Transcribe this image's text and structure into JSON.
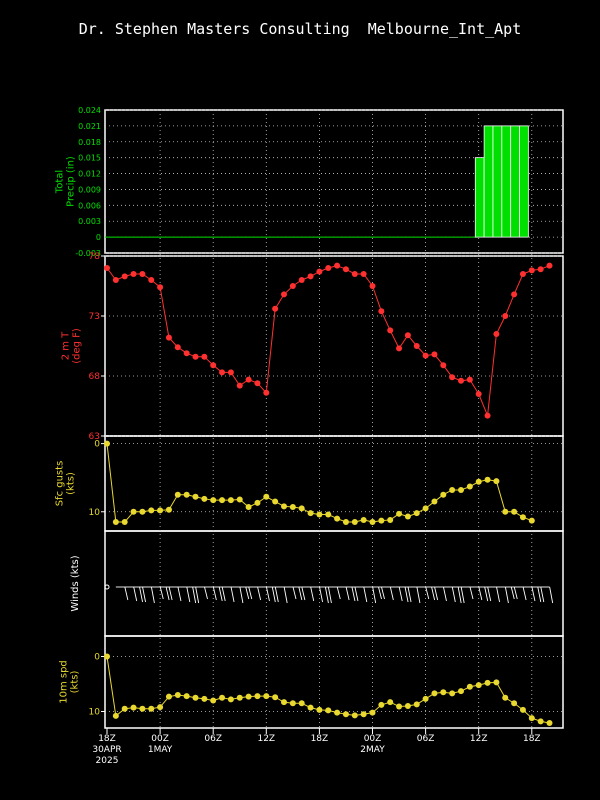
{
  "title": "Dr. Stephen Masters Consulting  Melbourne_Int_Apt",
  "colors": {
    "frame": "#ffffff",
    "grid": "#c8c8c8",
    "precip": "#00e000",
    "temp": "#ff3030",
    "gust": "#e8d830",
    "wind": "#ffffff",
    "spd": "#e8d830"
  },
  "x_axis": {
    "start": "2025-04-30T18:00Z",
    "step_hours": 1,
    "ticks": [
      {
        "hour": 0,
        "lines": [
          "18Z",
          "30APR",
          "2025"
        ]
      },
      {
        "hour": 6,
        "lines": [
          "00Z",
          "1MAY"
        ]
      },
      {
        "hour": 12,
        "lines": [
          "06Z"
        ]
      },
      {
        "hour": 18,
        "lines": [
          "12Z"
        ]
      },
      {
        "hour": 24,
        "lines": [
          "18Z"
        ]
      },
      {
        "hour": 30,
        "lines": [
          "00Z",
          "2MAY"
        ]
      },
      {
        "hour": 36,
        "lines": [
          "06Z"
        ]
      },
      {
        "hour": 42,
        "lines": [
          "12Z"
        ]
      },
      {
        "hour": 48,
        "lines": [
          "18Z"
        ]
      }
    ]
  },
  "chart_data": [
    {
      "type": "bar",
      "ylabel": [
        "Total",
        "Precip (in)"
      ],
      "ylim": [
        -0.003,
        0.024
      ],
      "yticks": [
        "0.024",
        "0.021",
        "0.018",
        "0.015",
        "0.012",
        "0.009",
        "0.006",
        "0.003",
        "0",
        "-0.003"
      ],
      "bars_by_hour": [
        {
          "hour": 42,
          "value": 0.015
        },
        {
          "hour": 43,
          "value": 0.021
        },
        {
          "hour": 44,
          "value": 0.021
        },
        {
          "hour": 45,
          "value": 0.021
        },
        {
          "hour": 46,
          "value": 0.021
        },
        {
          "hour": 47,
          "value": 0.021
        }
      ]
    },
    {
      "type": "line",
      "ylabel": [
        "2 m T",
        "(deg F)"
      ],
      "ylim": [
        63,
        78
      ],
      "yticks": [
        "78",
        "73",
        "68",
        "63"
      ],
      "values": [
        77,
        76,
        76.3,
        76.5,
        76.5,
        76,
        75.4,
        71.2,
        70.4,
        69.9,
        69.6,
        69.6,
        68.9,
        68.3,
        68.3,
        67.2,
        67.7,
        67.4,
        66.6,
        73.6,
        74.8,
        75.5,
        76,
        76.3,
        76.7,
        77,
        77.2,
        76.9,
        76.5,
        76.5,
        75.5,
        73.4,
        71.8,
        70.3,
        71.4,
        70.5,
        69.7,
        69.8,
        68.9,
        67.9,
        67.6,
        67.7,
        66.5,
        64.7,
        71.5,
        73,
        74.8,
        76.5,
        76.8,
        76.9,
        77.2
      ]
    },
    {
      "type": "line",
      "ylabel": [
        "Sfc gusts",
        "(kts)"
      ],
      "ylim": [
        -1,
        12
      ],
      "yticks": [
        "10",
        "0"
      ],
      "values": [
        0,
        11.5,
        11.5,
        10,
        10,
        9.8,
        9.8,
        9.7,
        7.5,
        7.5,
        7.8,
        8.1,
        8.3,
        8.3,
        8.3,
        8.2,
        9.3,
        8.7,
        7.8,
        8.5,
        9.2,
        9.3,
        9.5,
        10.2,
        10.4,
        10.4,
        11,
        11.5,
        11.5,
        11.2,
        11.5,
        11.3,
        11.2,
        10.3,
        10.7,
        10.2,
        9.5,
        8.5,
        7.5,
        6.8,
        6.8,
        6.3,
        5.6,
        5.3,
        5.5,
        10,
        10,
        10.8,
        11.3
      ]
    },
    {
      "type": "barbs",
      "ylabel": [
        "Winds (kts)"
      ],
      "note": "wind barbs from the north-northwest, ~5-12 kt"
    },
    {
      "type": "line",
      "ylabel": [
        "10m spd",
        "(kts)"
      ],
      "ylim": [
        -1,
        12
      ],
      "yticks": [
        "10",
        "0"
      ],
      "values": [
        0,
        10.8,
        9.5,
        9.3,
        9.5,
        9.5,
        9.2,
        7.3,
        7,
        7.2,
        7.5,
        7.7,
        8,
        7.5,
        7.8,
        7.5,
        7.3,
        7.2,
        7.2,
        7.4,
        8.3,
        8.5,
        8.5,
        9.3,
        9.7,
        9.8,
        10.2,
        10.5,
        10.7,
        10.5,
        10.2,
        8.8,
        8.3,
        9.1,
        9,
        8.7,
        7.7,
        6.7,
        6.5,
        6.7,
        6.3,
        5.5,
        5.2,
        4.8,
        4.7,
        7.5,
        8.5,
        9.7,
        11.2,
        11.8,
        12.1
      ]
    }
  ]
}
